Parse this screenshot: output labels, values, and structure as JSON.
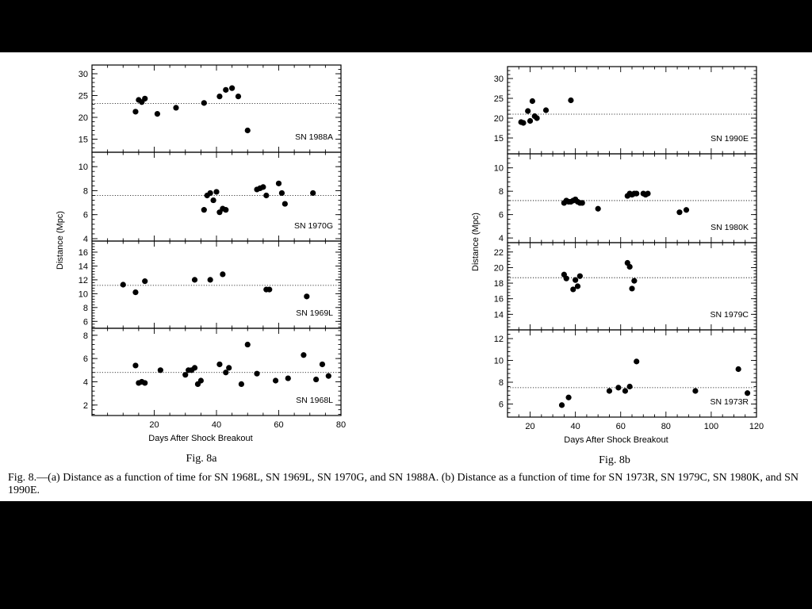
{
  "caption": "Fig. 8.—(a) Distance as a function of time for SN 1968L, SN 1969L, SN 1970G, and SN 1988A. (b) Distance as a function of time for SN 1973R, SN 1979C, SN 1980K, and SN 1990E.",
  "chart_data": [
    {
      "type": "scatter",
      "fig_label": "Fig. 8a",
      "xlabel": "Days After Shock Breakout",
      "ylabel": "Distance (Mpc)",
      "xlim": [
        0,
        80
      ],
      "xticks": [
        20,
        40,
        60,
        80
      ],
      "panels": [
        {
          "name": "SN 1988A",
          "ylim": [
            12,
            32
          ],
          "yticks": [
            15,
            20,
            25,
            30
          ],
          "mean": 23.2,
          "points": [
            [
              14,
              21.3
            ],
            [
              15,
              24
            ],
            [
              16,
              23.5
            ],
            [
              17,
              24.3
            ],
            [
              21,
              20.8
            ],
            [
              27,
              22.2
            ],
            [
              36,
              23.3
            ],
            [
              41,
              24.8
            ],
            [
              43,
              26.3
            ],
            [
              45,
              26.7
            ],
            [
              47,
              24.8
            ],
            [
              50,
              17
            ]
          ]
        },
        {
          "name": "SN 1970G",
          "ylim": [
            3.8,
            11.2
          ],
          "yticks": [
            4,
            6,
            8,
            10
          ],
          "mean": 7.6,
          "points": [
            [
              36,
              6.4
            ],
            [
              37,
              7.6
            ],
            [
              38,
              7.8
            ],
            [
              39,
              7.2
            ],
            [
              40,
              7.9
            ],
            [
              41,
              6.2
            ],
            [
              42,
              6.5
            ],
            [
              43,
              6.4
            ],
            [
              53,
              8.1
            ],
            [
              54,
              8.2
            ],
            [
              55,
              8.3
            ],
            [
              56,
              7.6
            ],
            [
              60,
              8.6
            ],
            [
              61,
              7.8
            ],
            [
              62,
              6.9
            ],
            [
              71,
              7.8
            ]
          ]
        },
        {
          "name": "SN 1969L",
          "ylim": [
            5,
            17.6
          ],
          "yticks": [
            6,
            8,
            10,
            12,
            14,
            16
          ],
          "mean": 11.2,
          "points": [
            [
              10,
              11.3
            ],
            [
              14,
              10.2
            ],
            [
              17,
              11.8
            ],
            [
              33,
              12
            ],
            [
              38,
              12
            ],
            [
              42,
              12.8
            ],
            [
              56,
              10.6
            ],
            [
              57,
              10.6
            ],
            [
              69,
              9.6
            ]
          ]
        },
        {
          "name": "SN 1968L",
          "ylim": [
            1.1,
            8.6
          ],
          "yticks": [
            2,
            4,
            6,
            8
          ],
          "mean": 4.8,
          "points": [
            [
              14,
              5.4
            ],
            [
              15,
              3.9
            ],
            [
              16,
              4
            ],
            [
              17,
              3.9
            ],
            [
              22,
              5
            ],
            [
              30,
              4.6
            ],
            [
              31,
              5
            ],
            [
              32,
              5
            ],
            [
              33,
              5.2
            ],
            [
              34,
              3.8
            ],
            [
              35,
              4.1
            ],
            [
              41,
              5.5
            ],
            [
              43,
              4.8
            ],
            [
              44,
              5.2
            ],
            [
              48,
              3.8
            ],
            [
              50,
              7.2
            ],
            [
              53,
              4.7
            ],
            [
              59,
              4.1
            ],
            [
              63,
              4.3
            ],
            [
              68,
              6.3
            ],
            [
              72,
              4.2
            ],
            [
              74,
              5.5
            ],
            [
              76,
              4.5
            ]
          ]
        }
      ]
    },
    {
      "type": "scatter",
      "fig_label": "Fig. 8b",
      "xlabel": "Days After Shock Breakout",
      "ylabel": "Distance (Mpc)",
      "xlim": [
        10,
        120
      ],
      "xticks": [
        20,
        40,
        60,
        80,
        100,
        120
      ],
      "panels": [
        {
          "name": "SN 1990E",
          "ylim": [
            11,
            33
          ],
          "yticks": [
            15,
            20,
            25,
            30
          ],
          "mean": 21,
          "points": [
            [
              16,
              19
            ],
            [
              17,
              18.8
            ],
            [
              19,
              21.8
            ],
            [
              20,
              19.3
            ],
            [
              21,
              24.3
            ],
            [
              22,
              20.5
            ],
            [
              23,
              20
            ],
            [
              27,
              22
            ],
            [
              38,
              24.5
            ]
          ]
        },
        {
          "name": "SN 1980K",
          "ylim": [
            3.6,
            11.2
          ],
          "yticks": [
            4,
            6,
            8,
            10
          ],
          "mean": 7.2,
          "points": [
            [
              35,
              7
            ],
            [
              36,
              7.2
            ],
            [
              37,
              7.1
            ],
            [
              38,
              7.1
            ],
            [
              39,
              7.2
            ],
            [
              40,
              7.3
            ],
            [
              41,
              7.1
            ],
            [
              42,
              7
            ],
            [
              43,
              7
            ],
            [
              50,
              6.5
            ],
            [
              63,
              7.6
            ],
            [
              64,
              7.8
            ],
            [
              65,
              7.7
            ],
            [
              66,
              7.8
            ],
            [
              67,
              7.8
            ],
            [
              70,
              7.8
            ],
            [
              71,
              7.7
            ],
            [
              72,
              7.8
            ],
            [
              86,
              6.2
            ],
            [
              89,
              6.4
            ]
          ]
        },
        {
          "name": "SN 1979C",
          "ylim": [
            12,
            23.2
          ],
          "yticks": [
            14,
            16,
            18,
            20,
            22
          ],
          "mean": 18.7,
          "points": [
            [
              35,
              19.1
            ],
            [
              36,
              18.6
            ],
            [
              39,
              17.2
            ],
            [
              40,
              18.4
            ],
            [
              41,
              17.6
            ],
            [
              42,
              18.9
            ],
            [
              63,
              20.6
            ],
            [
              64,
              20.1
            ],
            [
              65,
              17.3
            ],
            [
              66,
              18.3
            ]
          ]
        },
        {
          "name": "SN 1973R",
          "ylim": [
            4.8,
            12.8
          ],
          "yticks": [
            6,
            8,
            10,
            12
          ],
          "mean": 7.5,
          "points": [
            [
              34,
              5.9
            ],
            [
              37,
              6.6
            ],
            [
              55,
              7.2
            ],
            [
              59,
              7.5
            ],
            [
              62,
              7.2
            ],
            [
              64,
              7.6
            ],
            [
              67,
              9.9
            ],
            [
              93,
              7.2
            ],
            [
              112,
              9.2
            ],
            [
              116,
              7
            ]
          ]
        }
      ]
    }
  ]
}
